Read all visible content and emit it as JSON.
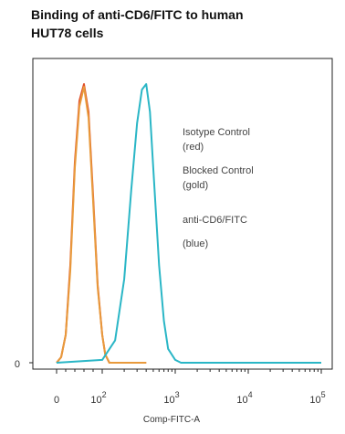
{
  "chart_data": {
    "type": "line",
    "title_lines": [
      "Binding of anti-CD6/FITC to human",
      "HUT78 cells"
    ],
    "xlabel": "Comp-FITC-A",
    "ylabel": "",
    "x_scale": "biexponential (log above ~10^2)",
    "x_tick_labels": [
      {
        "base": "0",
        "exp": ""
      },
      {
        "base": "10",
        "exp": "2"
      },
      {
        "base": "10",
        "exp": "3"
      },
      {
        "base": "10",
        "exp": "4"
      },
      {
        "base": "10",
        "exp": "5"
      }
    ],
    "y_tick_labels": [
      "0"
    ],
    "grid": false,
    "legend_placement": "upper-right inside plot",
    "annotations": [
      {
        "line1": "Isotype Control",
        "line2": "(red)"
      },
      {
        "line1": "Blocked Control",
        "line2": "(gold)"
      },
      {
        "line1": "anti-CD6/FITC",
        "line2": "(blue)"
      }
    ],
    "series": [
      {
        "key": "isotype",
        "color": "#e0502a",
        "points": [
          [
            0,
            0.0
          ],
          [
            10,
            0.02
          ],
          [
            20,
            0.1
          ],
          [
            30,
            0.35
          ],
          [
            40,
            0.72
          ],
          [
            50,
            0.94
          ],
          [
            60,
            1.0
          ],
          [
            70,
            0.9
          ],
          [
            80,
            0.6
          ],
          [
            90,
            0.28
          ],
          [
            100,
            0.1
          ],
          [
            110,
            0.03
          ],
          [
            125,
            0.0
          ],
          [
            400,
            0.0
          ]
        ]
      },
      {
        "key": "blocked",
        "color": "#e89a3c",
        "points": [
          [
            0,
            0.0
          ],
          [
            10,
            0.02
          ],
          [
            20,
            0.1
          ],
          [
            30,
            0.33
          ],
          [
            40,
            0.7
          ],
          [
            50,
            0.92
          ],
          [
            60,
            0.99
          ],
          [
            70,
            0.88
          ],
          [
            80,
            0.58
          ],
          [
            90,
            0.27
          ],
          [
            100,
            0.1
          ],
          [
            110,
            0.03
          ],
          [
            125,
            0.0
          ],
          [
            400,
            0.0
          ]
        ]
      },
      {
        "key": "anti_cd6",
        "color": "#2ab6c6",
        "points": [
          [
            0,
            0.0
          ],
          [
            100,
            0.01
          ],
          [
            150,
            0.08
          ],
          [
            200,
            0.3
          ],
          [
            250,
            0.62
          ],
          [
            300,
            0.86
          ],
          [
            350,
            0.98
          ],
          [
            400,
            1.0
          ],
          [
            450,
            0.9
          ],
          [
            500,
            0.7
          ],
          [
            600,
            0.35
          ],
          [
            700,
            0.15
          ],
          [
            800,
            0.05
          ],
          [
            1000,
            0.01
          ],
          [
            1200,
            0.0
          ],
          [
            100000,
            0.0
          ]
        ]
      }
    ]
  }
}
